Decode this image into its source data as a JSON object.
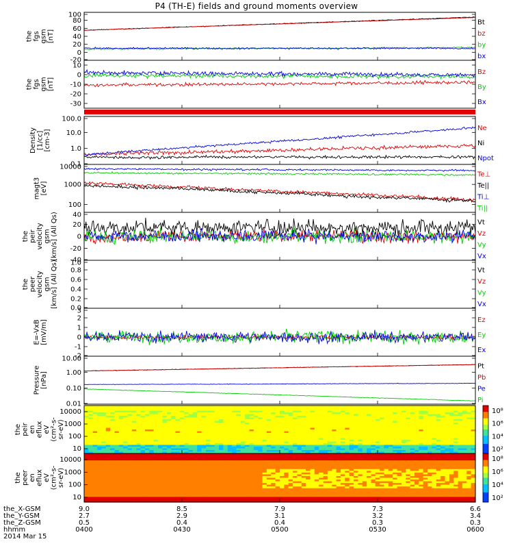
{
  "title": "P4 (TH-E) fields and ground moments overview",
  "colors": {
    "black": "#000000",
    "red": "#e00000",
    "green": "#00cc00",
    "blue": "#0000e0"
  },
  "chart_data": [
    {
      "id": "fgs_gsm_mag",
      "type": "line",
      "ylabel": [
        "the",
        "fgs",
        "gsm",
        "[nT]"
      ],
      "yticks": [
        "100",
        "80",
        "60",
        "40",
        "20",
        "0",
        "-20"
      ],
      "ylim": [
        -20,
        100
      ],
      "series": [
        {
          "name": "Bt",
          "color": "black",
          "start": 55,
          "end": 88,
          "noise": 0.6
        },
        {
          "name": "bz",
          "color": "red",
          "start": 55,
          "end": 87,
          "noise": 0.5
        },
        {
          "name": "by",
          "color": "green",
          "start": 8,
          "end": 12,
          "noise": 1.2
        },
        {
          "name": "bx",
          "color": "blue",
          "start": 10,
          "end": 10,
          "noise": 1.5
        }
      ]
    },
    {
      "id": "fgs_gsm_comp",
      "type": "line",
      "ylabel": [
        "the",
        "fgs",
        "gsm",
        "[nT]"
      ],
      "yticks": [
        "10",
        "0",
        "-10",
        "-20",
        "-30"
      ],
      "ylim": [
        -35,
        15
      ],
      "series": [
        {
          "name": "Bz",
          "color": "red",
          "start": -11,
          "end": -8,
          "noise": 1.2
        },
        {
          "name": "By",
          "color": "green",
          "start": -1,
          "end": -2,
          "noise": 1.5
        },
        {
          "name": "Bx",
          "color": "blue",
          "start": 2,
          "end": 0,
          "noise": 1.5
        }
      ]
    },
    {
      "id": "density",
      "type": "line",
      "log": true,
      "ylabel": [
        "Density",
        "[1/cc]",
        "[cm-3]"
      ],
      "yticks": [
        "100.0",
        "10.0",
        "1.0",
        "0.1"
      ],
      "ylim": [
        0.1,
        100
      ],
      "series": [
        {
          "name": "Ne",
          "color": "red",
          "start": 0.4,
          "end": 1.5,
          "noise": 0.08
        },
        {
          "name": "Ni",
          "color": "black",
          "start": 0.28,
          "end": 0.3,
          "noise": 0.06
        },
        {
          "name": "Npot",
          "color": "blue",
          "start": 0.4,
          "end": 20,
          "noise": 0.05
        }
      ]
    },
    {
      "id": "temperature",
      "type": "line",
      "log": true,
      "ylabel": [
        "magt3",
        "[eV]"
      ],
      "yticks": [
        "10000",
        "1000",
        "100"
      ],
      "ylim": [
        40,
        10000
      ],
      "series": [
        {
          "name": "Te⊥",
          "color": "red",
          "start": 1200,
          "end": 180,
          "noise": 0.06
        },
        {
          "name": "Te||",
          "color": "black",
          "start": 900,
          "end": 150,
          "noise": 0.06
        },
        {
          "name": "Ti⊥",
          "color": "blue",
          "start": 6000,
          "end": 5000,
          "noise": 0.03
        },
        {
          "name": "Ti||",
          "color": "green",
          "start": 3800,
          "end": 3000,
          "noise": 0.03
        }
      ]
    },
    {
      "id": "peir_velocity",
      "type": "line",
      "ylabel": [
        "the",
        "peir",
        "velocity",
        "gsm",
        "[km/s] (All Qs)"
      ],
      "yticks": [
        "40",
        "20",
        "0",
        "-20",
        "-40"
      ],
      "ylim": [
        -40,
        40
      ],
      "series": [
        {
          "name": "Vt",
          "color": "black",
          "start": 15,
          "end": 15,
          "noise": 9
        },
        {
          "name": "Vz",
          "color": "red",
          "start": 0,
          "end": 0,
          "noise": 7
        },
        {
          "name": "Vy",
          "color": "green",
          "start": 0,
          "end": 0,
          "noise": 8
        },
        {
          "name": "Vx",
          "color": "blue",
          "start": 0,
          "end": 0,
          "noise": 7
        }
      ]
    },
    {
      "id": "peer_velocity",
      "type": "line",
      "ylabel": [
        "the",
        "peer",
        "velocity",
        "gsm",
        "[km/s] (All Qs)"
      ],
      "yticks": [
        "1.0",
        "0.8",
        "0.6",
        "0.4",
        "0.2",
        "0.0"
      ],
      "ylim": [
        0,
        1
      ],
      "series": [
        {
          "name": "Vt",
          "color": "black"
        },
        {
          "name": "Vz",
          "color": "red"
        },
        {
          "name": "Vy",
          "color": "green"
        },
        {
          "name": "Vx",
          "color": "blue"
        }
      ]
    },
    {
      "id": "efield",
      "type": "line",
      "ylabel": [
        "E=-VxB",
        "[mV/m]"
      ],
      "yticks": [
        "3",
        "2",
        "1",
        "0",
        "-1",
        "-2"
      ],
      "ylim": [
        -2,
        3
      ],
      "series": [
        {
          "name": "Ez",
          "color": "red",
          "start": 0,
          "end": 0,
          "noise": 0.15
        },
        {
          "name": "Ey",
          "color": "green",
          "start": 0,
          "end": 0,
          "noise": 0.45
        },
        {
          "name": "Ex",
          "color": "blue",
          "start": 0,
          "end": 0,
          "noise": 0.4
        }
      ]
    },
    {
      "id": "pressure",
      "type": "line",
      "log": true,
      "ylabel": [
        "Pressure",
        "[nPa]"
      ],
      "yticks": [
        "10.00",
        "1.00",
        "0.10",
        "0.01"
      ],
      "ylim": [
        0.01,
        10
      ],
      "series": [
        {
          "name": "Pt",
          "color": "black",
          "start": 1.2,
          "end": 3.0,
          "noise": 0.01
        },
        {
          "name": "Pb",
          "color": "red",
          "start": 1.2,
          "end": 3.0,
          "noise": 0.01
        },
        {
          "name": "Pe",
          "color": "blue",
          "start": 0.17,
          "end": 0.2,
          "noise": 0.01
        },
        {
          "name": "Pi",
          "color": "green",
          "start": 0.09,
          "end": 0.016,
          "noise": 0.01
        }
      ]
    },
    {
      "id": "peir_eflux",
      "type": "heatmap",
      "ylabel": [
        "the",
        "peir",
        "en",
        "eflux",
        "eV",
        "(cm²-s-",
        "sr-eV)"
      ],
      "yticks": [
        "10000",
        "1000",
        "100",
        "10"
      ],
      "colorbar": [
        "10⁸",
        "10⁶",
        "10⁴",
        "10²"
      ]
    },
    {
      "id": "peer_eflux",
      "type": "heatmap",
      "ylabel": [
        "the",
        "peer",
        "en",
        "eflux",
        "eV",
        "(cm²-s-",
        "sr-eV)"
      ],
      "yticks": [
        "10000",
        "1000",
        "100",
        "10"
      ],
      "colorbar": [
        "10⁸",
        "10⁶",
        "10⁴",
        "10²"
      ]
    }
  ],
  "x_axis": {
    "rows": [
      {
        "label": "the_X-GSM",
        "values": [
          "9.0",
          "8.5",
          "7.9",
          "7.3",
          "6.6"
        ]
      },
      {
        "label": "the_Y-GSM",
        "values": [
          "2.7",
          "2.9",
          "3.1",
          "3.2",
          "3.4"
        ]
      },
      {
        "label": "the_Z-GSM",
        "values": [
          "0.5",
          "0.4",
          "0.4",
          "0.3",
          "0.3"
        ]
      },
      {
        "label": "hhmm",
        "values": [
          "0400",
          "0430",
          "0500",
          "0530",
          "0600"
        ]
      }
    ],
    "date": "2014 Mar 15"
  }
}
